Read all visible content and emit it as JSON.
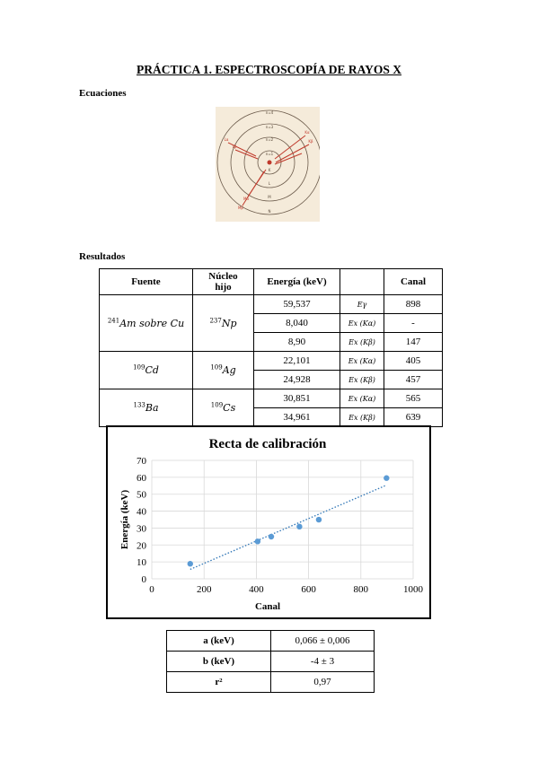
{
  "title": "PRÁCTICA 1. ESPECTROSCOPÍA DE RAYOS X",
  "sections": {
    "equations": "Ecuaciones",
    "results": "Resultados"
  },
  "diagram": {
    "shell_labels": [
      "n=4",
      "n=3",
      "n=2",
      "n=1",
      "K",
      "L",
      "M",
      "N"
    ],
    "transition_labels": [
      "Lα",
      "Lβ",
      "Kα",
      "Kβ",
      "Mα",
      "Mβ"
    ]
  },
  "results_table": {
    "headers": [
      "Fuente",
      "Núcleo hijo",
      "Energía (keV)",
      "",
      "Canal"
    ],
    "groups": [
      {
        "fuente": {
          "mass": "241",
          "text": "Am sobre Cu"
        },
        "hijo": {
          "mass": "237",
          "text": "Np"
        },
        "rows": [
          {
            "energia": "59,537",
            "linea": "Eγ",
            "canal": "898"
          },
          {
            "energia": "8,040",
            "linea": "Ex (Kα)",
            "canal": "-"
          },
          {
            "energia": "8,90",
            "linea": "Ex (Kβ)",
            "canal": "147"
          }
        ]
      },
      {
        "fuente": {
          "mass": "109",
          "text": "Cd"
        },
        "hijo": {
          "mass": "109",
          "text": "Ag"
        },
        "rows": [
          {
            "energia": "22,101",
            "linea": "Ex (Kα)",
            "canal": "405"
          },
          {
            "energia": "24,928",
            "linea": "Ex (Kβ)",
            "canal": "457"
          }
        ]
      },
      {
        "fuente": {
          "mass": "133",
          "text": "Ba"
        },
        "hijo": {
          "mass": "109",
          "text": "Cs"
        },
        "rows": [
          {
            "energia": "30,851",
            "linea": "Ex (Kα)",
            "canal": "565"
          },
          {
            "energia": "34,961",
            "linea": "Ex (Kβ)",
            "canal": "639"
          }
        ]
      }
    ]
  },
  "chart_data": {
    "type": "scatter",
    "title": "Recta de calibración",
    "xlabel": "Canal",
    "ylabel": "Energía (keV)",
    "xlim": [
      0,
      1000
    ],
    "ylim": [
      0,
      70
    ],
    "xticks": [
      0,
      200,
      400,
      600,
      800,
      1000
    ],
    "yticks": [
      0,
      10,
      20,
      30,
      40,
      50,
      60,
      70
    ],
    "grid": true,
    "points": [
      {
        "x": 147,
        "y": 8.9
      },
      {
        "x": 405,
        "y": 22.101
      },
      {
        "x": 457,
        "y": 24.928
      },
      {
        "x": 565,
        "y": 30.851
      },
      {
        "x": 639,
        "y": 34.961
      },
      {
        "x": 898,
        "y": 59.537
      }
    ],
    "trendline": {
      "type": "linear",
      "style": "dotted",
      "x_range": [
        147,
        898
      ]
    },
    "colors": {
      "points": "#5b9bd5",
      "trendline": "#2e75b6",
      "grid": "#d9d9d9"
    }
  },
  "fit_table": [
    {
      "key": "a (keV)",
      "value": "0,066 ± 0,006"
    },
    {
      "key": "b (keV)",
      "value": "-4 ± 3"
    },
    {
      "key": "r²",
      "value": "0,97"
    }
  ]
}
